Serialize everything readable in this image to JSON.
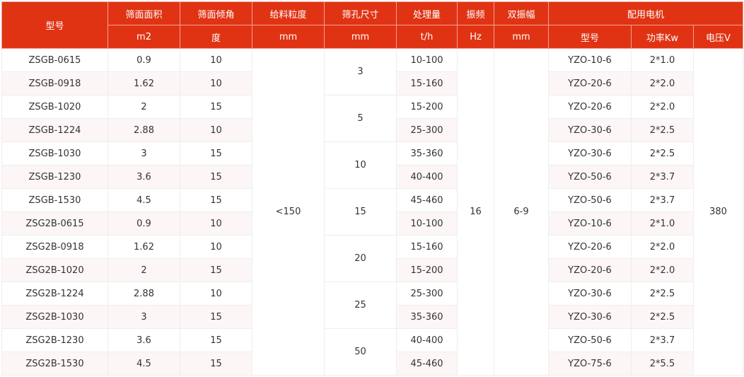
{
  "header": {
    "row1": [
      "型号",
      "筛面面积",
      "筛面倾角",
      "给料粒度",
      "筛孔尺寸",
      "处理量",
      "振频",
      "双振幅",
      "配用电机"
    ],
    "row2": [
      "m2",
      "度",
      "mm",
      "mm",
      "t/h",
      "Hz",
      "mm",
      "型号",
      "功率Kw",
      "电压V"
    ]
  },
  "colors": {
    "header_bg": "#e03314",
    "alt_row_bg": "#fdf6f6"
  },
  "feed_size": "<150",
  "frequency": "16",
  "amplitude": "6-9",
  "voltage": "380",
  "mesh_sizes": [
    "3",
    "5",
    "10",
    "15",
    "20",
    "25",
    "50"
  ],
  "rows": [
    {
      "model": "ZSGB-0615",
      "area": "0.9",
      "angle": "10",
      "capacity": "10-100",
      "motor": "YZO-10-6",
      "power": "2*1.0"
    },
    {
      "model": "ZSGB-0918",
      "area": "1.62",
      "angle": "10",
      "capacity": "15-160",
      "motor": "YZO-20-6",
      "power": "2*2.0"
    },
    {
      "model": "ZSGB-1020",
      "area": "2",
      "angle": "15",
      "capacity": "15-200",
      "motor": "YZO-20-6",
      "power": "2*2.0"
    },
    {
      "model": "ZSGB-1224",
      "area": "2.88",
      "angle": "10",
      "capacity": "25-300",
      "motor": "YZO-30-6",
      "power": "2*2.5"
    },
    {
      "model": "ZSGB-1030",
      "area": "3",
      "angle": "15",
      "capacity": "35-360",
      "motor": "YZO-30-6",
      "power": "2*2.5"
    },
    {
      "model": "ZSGB-1230",
      "area": "3.6",
      "angle": "15",
      "capacity": "40-400",
      "motor": "YZO-50-6",
      "power": "2*3.7"
    },
    {
      "model": "ZSGB-1530",
      "area": "4.5",
      "angle": "15",
      "capacity": "45-460",
      "motor": "YZO-50-6",
      "power": "2*3.7"
    },
    {
      "model": "ZSG2B-0615",
      "area": "0.9",
      "angle": "10",
      "capacity": "10-100",
      "motor": "YZO-10-6",
      "power": "2*1.0"
    },
    {
      "model": "ZSG2B-0918",
      "area": "1.62",
      "angle": "10",
      "capacity": "15-160",
      "motor": "YZO-20-6",
      "power": "2*2.0"
    },
    {
      "model": "ZSG2B-1020",
      "area": "2",
      "angle": "15",
      "capacity": "15-200",
      "motor": "YZO-20-6",
      "power": "2*2.0"
    },
    {
      "model": "ZSG2B-1224",
      "area": "2.88",
      "angle": "10",
      "capacity": "25-300",
      "motor": "YZO-30-6",
      "power": "2*2.5"
    },
    {
      "model": "ZSG2B-1030",
      "area": "3",
      "angle": "15",
      "capacity": "35-360",
      "motor": "YZO-30-6",
      "power": "2*2.5"
    },
    {
      "model": "ZSG2B-1230",
      "area": "3.6",
      "angle": "15",
      "capacity": "40-400",
      "motor": "YZO-50-6",
      "power": "2*3.7"
    },
    {
      "model": "ZSG2B-1530",
      "area": "4.5",
      "angle": "15",
      "capacity": "45-460",
      "motor": "YZO-75-6",
      "power": "2*5.5"
    }
  ]
}
